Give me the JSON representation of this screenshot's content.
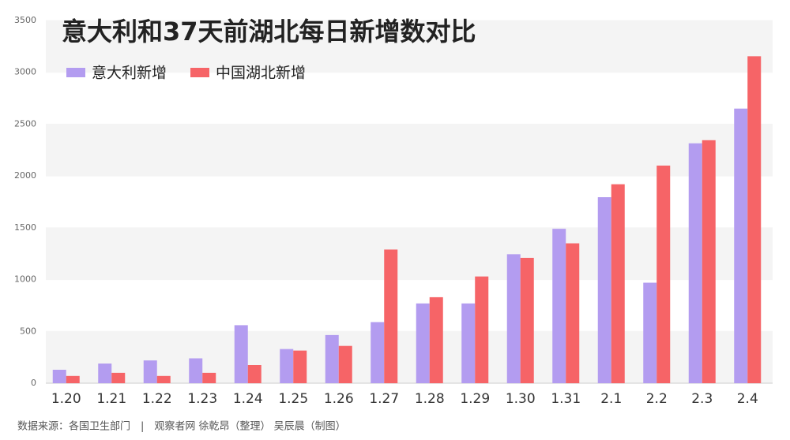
{
  "chart_data": {
    "type": "bar",
    "title": "意大利和37天前湖北每日新增数对比",
    "categories": [
      "1.20",
      "1.21",
      "1.22",
      "1.23",
      "1.24",
      "1.25",
      "1.26",
      "1.27",
      "1.28",
      "1.29",
      "1.30",
      "1.31",
      "2.1",
      "2.2",
      "2.3",
      "2.4"
    ],
    "series": [
      {
        "name": "意大利新增",
        "color": "#b39cf0",
        "values": [
          130,
          190,
          220,
          240,
          560,
          330,
          465,
          590,
          770,
          770,
          1245,
          1490,
          1795,
          970,
          2315,
          2650
        ]
      },
      {
        "name": "中国湖北新增",
        "color": "#f66467",
        "values": [
          70,
          100,
          70,
          100,
          175,
          315,
          360,
          1290,
          830,
          1030,
          1210,
          1350,
          1920,
          2100,
          2345,
          3155
        ]
      }
    ],
    "ylim": [
      0,
      3500
    ],
    "yticks": [
      0,
      500,
      1000,
      1500,
      2000,
      2500,
      3000,
      3500
    ],
    "grid": true,
    "legend": "top-left",
    "source": "数据来源：各国卫生部门　|　观察者网 徐乾昂（整理） 吴辰晨（制图）"
  }
}
